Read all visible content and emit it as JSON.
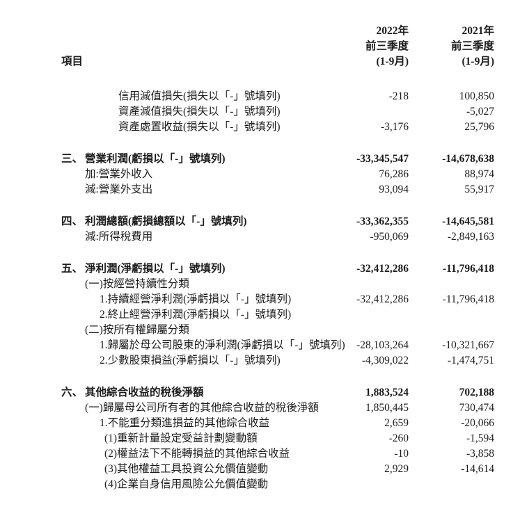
{
  "page": {
    "background_color": "#ffffff",
    "text_color": "#1c1c1c"
  },
  "table": {
    "header": {
      "item_label": "項目",
      "col_2022": {
        "line1": "2022年",
        "line2": "前三季度",
        "line3": "(1-9月)"
      },
      "col_2021": {
        "line1": "2021年",
        "line2": "前三季度",
        "line3": "(1-9月)"
      }
    },
    "rows": [
      {
        "level": 4,
        "label": "信用減值損失(損失以「-」號填列)",
        "v2022": "-218",
        "v2021": "100,850"
      },
      {
        "level": 4,
        "label": "資產減值損失(損失以「-」號填列)",
        "v2022": "",
        "v2021": "-5,027"
      },
      {
        "level": 4,
        "label": "資產處置收益(損失以「-」號填列)",
        "v2022": "-3,176",
        "v2021": "25,796"
      },
      {
        "spacer": true
      },
      {
        "level": 0,
        "num": "三、",
        "label": "營業利潤(虧損以「-」號填列)",
        "bold": true,
        "v2022": "-33,345,547",
        "v2021": "-14,678,638"
      },
      {
        "level": 1,
        "label": "加:營業外收入",
        "v2022": "76,286",
        "v2021": "88,974"
      },
      {
        "level": 1,
        "label": "減:營業外支出",
        "v2022": "93,094",
        "v2021": "55,917"
      },
      {
        "spacer": true
      },
      {
        "level": 0,
        "num": "四、",
        "label": "利潤總額(虧損總額以「-」號填列)",
        "bold": true,
        "v2022": "-33,362,355",
        "v2021": "-14,645,581"
      },
      {
        "level": 1,
        "label": "減:所得稅費用",
        "v2022": "-950,069",
        "v2021": "-2,849,163"
      },
      {
        "spacer": true
      },
      {
        "level": 0,
        "num": "五、",
        "label": "淨利潤(淨虧損以「-」號填列)",
        "bold": true,
        "v2022": "-32,412,286",
        "v2021": "-11,796,418"
      },
      {
        "level": 1,
        "label": "(一)按經營持續性分類",
        "v2022": "",
        "v2021": ""
      },
      {
        "level": 2,
        "label": "1.持續經營淨利潤(淨虧損以「-」號填列)",
        "v2022": "-32,412,286",
        "v2021": "-11,796,418"
      },
      {
        "level": 2,
        "label": "2.終止經營淨利潤(淨虧損以「-」號填列)",
        "v2022": "",
        "v2021": ""
      },
      {
        "level": 1,
        "label": "(二)按所有權歸屬分類",
        "v2022": "",
        "v2021": ""
      },
      {
        "level": 2,
        "label": "1.歸屬於母公司股東的淨利潤(淨虧損以「-」號填列)",
        "v2022": "-28,103,264",
        "v2021": "-10,321,667"
      },
      {
        "level": 2,
        "label": "2.少數股東損益(淨虧損以「-」號填列)",
        "v2022": "-4,309,022",
        "v2021": "-1,474,751"
      },
      {
        "spacer": true
      },
      {
        "level": 0,
        "num": "六、",
        "label": "其他綜合收益的稅後淨額",
        "bold": true,
        "v2022": "1,883,524",
        "v2021": "702,188"
      },
      {
        "level": 1,
        "label": "(一)歸屬母公司所有者的其他綜合收益的稅後淨額",
        "v2022": "1,850,445",
        "v2021": "730,474"
      },
      {
        "level": 2,
        "label": "1.不能重分類進損益的其他綜合收益",
        "v2022": "2,659",
        "v2021": "-20,066"
      },
      {
        "level": 3,
        "label": "(1)重新計量設定受益計劃變動額",
        "v2022": "-260",
        "v2021": "-1,594"
      },
      {
        "level": 3,
        "label": "(2)權益法下不能轉損益的其他綜合收益",
        "v2022": "-10",
        "v2021": "-3,858"
      },
      {
        "level": 3,
        "label": "(3)其他權益工具投資公允價值變動",
        "v2022": "2,929",
        "v2021": "-14,614"
      },
      {
        "level": 3,
        "label": "(4)企業自身信用風險公允價值變動",
        "v2022": "",
        "v2021": ""
      }
    ]
  }
}
